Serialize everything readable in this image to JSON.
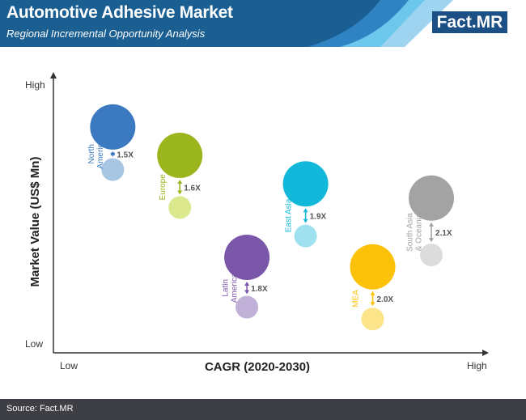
{
  "header": {
    "title": "Automotive Adhesive Market",
    "subtitle": "Regional Incremental Opportunity Analysis",
    "logo_main": "Fact.",
    "logo_suffix": "MR",
    "colors": {
      "primary": "#1a5e92",
      "secondary": "#2f83c3",
      "light": "#9fd4f0",
      "cyan": "#6cc7ec"
    }
  },
  "footer": {
    "source": "Source: Fact.MR"
  },
  "chart_data": {
    "type": "bubble",
    "title": "Automotive Adhesive Market",
    "subtitle": "Regional Incremental Opportunity Analysis",
    "xlabel": "CAGR (2020-2030)",
    "ylabel": "Market Value (US$ Mn)",
    "x_ticks": [
      "Low",
      "High"
    ],
    "y_ticks": [
      "Low",
      "High"
    ],
    "regions": [
      {
        "name_lines": [
          "North",
          "America"
        ],
        "growth": "1.5X",
        "x": 0.13,
        "value_2030": 0.84,
        "value_2020": 0.66,
        "color": "#3b79c1",
        "light": "#a6c6e4"
      },
      {
        "name_lines": [
          "Europe"
        ],
        "growth": "1.6X",
        "x": 0.29,
        "value_2030": 0.72,
        "value_2020": 0.5,
        "color": "#9bb61d",
        "light": "#dce88e"
      },
      {
        "name_lines": [
          "Latin",
          "America"
        ],
        "growth": "1.8X",
        "x": 0.45,
        "value_2030": 0.29,
        "value_2020": 0.08,
        "color": "#7a57a8",
        "light": "#c1b1d8"
      },
      {
        "name_lines": [
          "East Asia"
        ],
        "growth": "1.9X",
        "x": 0.59,
        "value_2030": 0.6,
        "value_2020": 0.38,
        "color": "#12b8d9",
        "light": "#9fe1ef"
      },
      {
        "name_lines": [
          "MEA"
        ],
        "growth": "2.0X",
        "x": 0.75,
        "value_2030": 0.25,
        "value_2020": 0.03,
        "color": "#fbc209",
        "light": "#fbe489"
      },
      {
        "name_lines": [
          "South Asia",
          "& Oceania"
        ],
        "growth": "2.1X",
        "x": 0.89,
        "value_2030": 0.54,
        "value_2020": 0.3,
        "color": "#a3a3a3",
        "light": "#dcdcdc"
      }
    ]
  }
}
